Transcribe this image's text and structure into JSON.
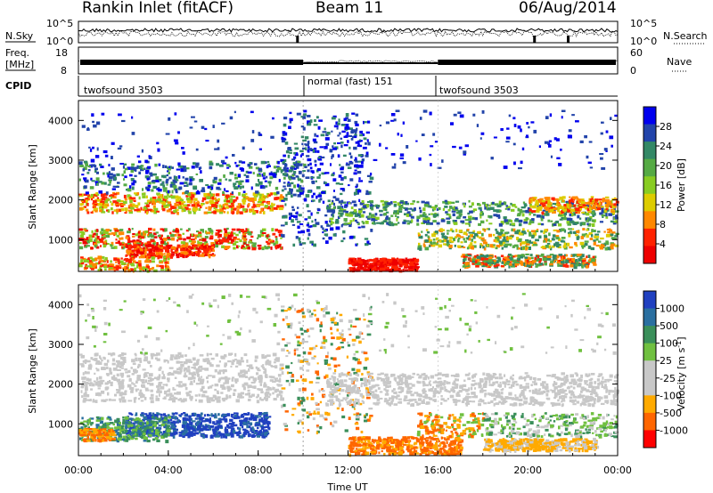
{
  "header": {
    "station": "Rankin Inlet (fitACF)",
    "beam": "Beam 11",
    "date": "06/Aug/2014"
  },
  "panels": {
    "nsky": {
      "left_label": "N.Sky",
      "right_label": "N.Search",
      "left_ticks": [
        "10^5",
        "10^0"
      ],
      "right_ticks": [
        "10^5",
        "10^0"
      ]
    },
    "freq": {
      "left_label": "Freq.",
      "left_unit": "[MHz]",
      "right_label": "Nave",
      "left_ticks": [
        "18",
        "8"
      ],
      "right_ticks": [
        "60",
        "0"
      ]
    },
    "cpid": {
      "label": "CPID",
      "segments": [
        {
          "name": "twofsound 3503",
          "start": "00:00",
          "end": "10:00"
        },
        {
          "name": "normal (fast) 151",
          "start": "10:00",
          "end": "16:00"
        },
        {
          "name": "twofsound 3503",
          "start": "16:00",
          "end": "24:00"
        }
      ]
    }
  },
  "chart_data": [
    {
      "type": "heatmap",
      "name": "power",
      "ylabel": "Slant Range [km]",
      "ylim": [
        200,
        4500
      ],
      "yticks": [
        "1000",
        "2000",
        "3000",
        "4000"
      ],
      "colorbar_label": "Power [dB]",
      "colorbar_ticks": [
        "28",
        "24",
        "20",
        "16",
        "12",
        "8",
        "4"
      ],
      "colors": [
        "#0000ee",
        "#2244aa",
        "#338866",
        "#55aa44",
        "#88cc22",
        "#ddcc00",
        "#ff8800",
        "#ff2200",
        "#ee0000"
      ]
    },
    {
      "type": "heatmap",
      "name": "velocity",
      "ylabel": "Slant Range [km]",
      "ylim": [
        200,
        4500
      ],
      "yticks": [
        "1000",
        "2000",
        "3000",
        "4000"
      ],
      "xlabel": "Time UT",
      "xticks": [
        "00:00",
        "04:00",
        "08:00",
        "12:00",
        "16:00",
        "20:00",
        "00:00"
      ],
      "xlim_hours": [
        0,
        24
      ],
      "colorbar_label": "Velocity [m s",
      "colorbar_label_sup": "-1",
      "colorbar_label_end": "]",
      "colorbar_ticks": [
        "1000",
        "500",
        "100",
        "25",
        "-25",
        "-100",
        "-500",
        "-1000"
      ],
      "colors": [
        "#2040c0",
        "#2a6fa0",
        "#3a8f5a",
        "#70c040",
        "#c8c8c8",
        "#c8c8c8",
        "#ffaa00",
        "#ff6600",
        "#ff0000"
      ]
    }
  ]
}
